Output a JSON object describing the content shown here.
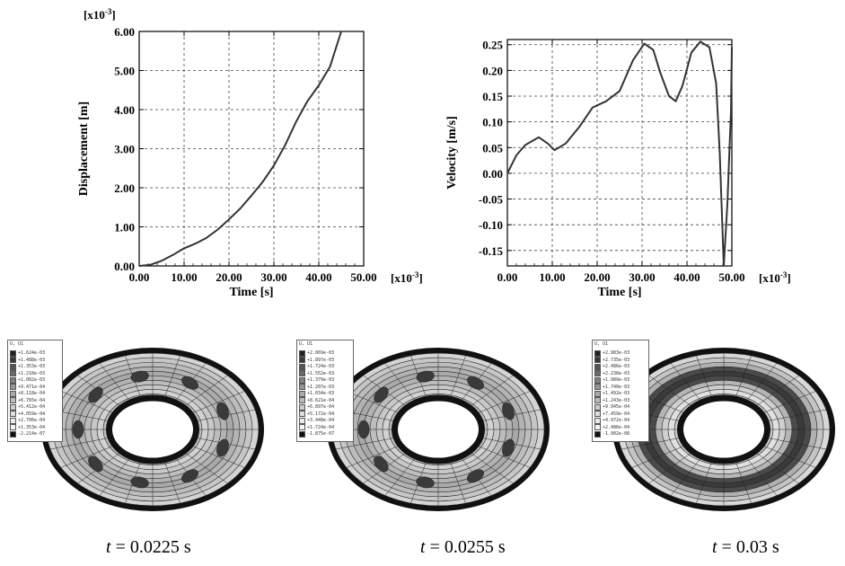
{
  "chart_data": [
    {
      "type": "line",
      "ylabel": "Displacement [m]",
      "xlabel": "Time [s]",
      "x_multiplier_label": "[x10",
      "x_multiplier_exp": "-3",
      "x_multiplier_close": "]",
      "y_multiplier_label": "[x10",
      "y_multiplier_exp": "-3",
      "y_multiplier_close": "]",
      "xlim": [
        0,
        50
      ],
      "ylim": [
        0,
        6
      ],
      "xticks": [
        "0.00",
        "10.00",
        "20.00",
        "30.00",
        "40.00",
        "50.00"
      ],
      "yticks": [
        "0.00",
        "1.00",
        "2.00",
        "3.00",
        "4.00",
        "5.00",
        "6.00"
      ],
      "grid": true,
      "x": [
        0,
        2.5,
        5,
        7.5,
        10,
        12.5,
        15,
        17.5,
        20,
        22.5,
        25,
        27.5,
        30,
        32.5,
        35,
        37.5,
        40,
        42.5,
        45
      ],
      "y": [
        0.0,
        0.03,
        0.13,
        0.28,
        0.45,
        0.57,
        0.72,
        0.93,
        1.19,
        1.47,
        1.8,
        2.15,
        2.57,
        3.09,
        3.7,
        4.22,
        4.62,
        5.1,
        6.0
      ]
    },
    {
      "type": "line",
      "ylabel": "Velocity [m/s]",
      "xlabel": "Time [s]",
      "x_multiplier_label": "[x10",
      "x_multiplier_exp": "-3",
      "x_multiplier_close": "]",
      "xlim": [
        0,
        50
      ],
      "ylim": [
        -0.18,
        0.26
      ],
      "xticks": [
        "0.00",
        "10.00",
        "20.00",
        "30.00",
        "40.00",
        "50.00"
      ],
      "yticks": [
        "0.25",
        "0.20",
        "0.15",
        "0.10",
        "0.05",
        "0.00",
        "-0.05",
        "-0.10",
        "-0.15"
      ],
      "ytick_values": [
        0.25,
        0.2,
        0.15,
        0.1,
        0.05,
        0.0,
        -0.05,
        -0.1,
        -0.15
      ],
      "grid": true,
      "x": [
        0,
        2,
        4,
        7,
        9,
        10.5,
        13,
        16,
        19,
        22,
        25,
        28,
        30.5,
        32.5,
        34,
        36,
        37.5,
        39,
        41,
        43,
        45,
        46.5,
        47.3,
        48.2,
        49.0,
        49.8,
        50
      ],
      "y": [
        0.0,
        0.035,
        0.055,
        0.07,
        0.058,
        0.045,
        0.058,
        0.09,
        0.128,
        0.14,
        0.16,
        0.22,
        0.252,
        0.24,
        0.197,
        0.15,
        0.14,
        0.17,
        0.235,
        0.256,
        0.245,
        0.175,
        0.04,
        -0.18,
        -0.06,
        0.12,
        0.245
      ]
    }
  ],
  "contours": [
    {
      "caption_var": "t",
      "caption_value": " = 0.0225 s",
      "legend_title": "U, U1",
      "legend_entries": [
        "+1.624e-03",
        "+1.488e-03",
        "+1.353e-03",
        "+1.218e-03",
        "+1.082e-03",
        "+9.471e-04",
        "+8.118e-04",
        "+6.765e-04",
        "+5.412e-04",
        "+4.059e-04",
        "+2.706e-04",
        "+1.353e-04",
        "-2.214e-07"
      ],
      "blob_count": 9
    },
    {
      "caption_var": "t",
      "caption_value": " = 0.0255 s",
      "legend_title": "U, U1",
      "legend_entries": [
        "+2.069e-03",
        "+1.897e-03",
        "+1.724e-03",
        "+1.552e-03",
        "+1.379e-03",
        "+1.207e-03",
        "+1.034e-03",
        "+8.621e-04",
        "+6.897e-04",
        "+5.172e-04",
        "+3.448e-04",
        "+1.724e-04",
        "-1.875e-07"
      ],
      "blob_count": 9
    },
    {
      "caption_var": "t",
      "caption_value": " = 0.03 s",
      "legend_title": "U, U1",
      "legend_entries": [
        "+2.983e-03",
        "+2.735e-03",
        "+2.486e-03",
        "+2.238e-03",
        "+1.989e-03",
        "+1.740e-03",
        "+1.492e-03",
        "+1.243e-03",
        "+9.945e-04",
        "+7.459e-04",
        "+4.972e-04",
        "+2.486e-04",
        "-1.902e-08"
      ],
      "blob_count": 0
    }
  ]
}
